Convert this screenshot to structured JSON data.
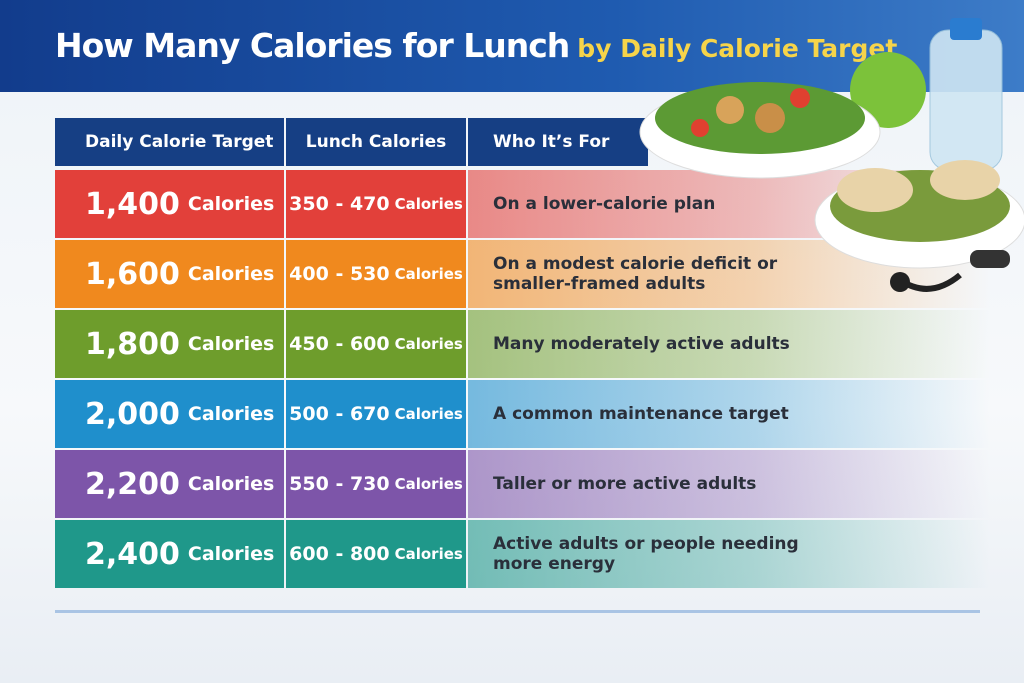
{
  "header": {
    "title": "How Many Calories for Lunch",
    "subtitle": "by Daily Calorie Target"
  },
  "table": {
    "columns": [
      "Daily Calorie Target",
      "Lunch Calories",
      "Who It’s For"
    ],
    "rows": [
      {
        "target": "1,400",
        "target_unit": "Calories",
        "lunch": "350 - 470",
        "lunch_unit": "Calories",
        "who": "On a lower-calorie plan",
        "color": "#e2403a"
      },
      {
        "target": "1,600",
        "target_unit": "Calories",
        "lunch": "400 - 530",
        "lunch_unit": "Calories",
        "who": "On a modest calorie deficit or smaller-framed adults",
        "color": "#f0891e"
      },
      {
        "target": "1,800",
        "target_unit": "Calories",
        "lunch": "450 - 600",
        "lunch_unit": "Calories",
        "who": "Many moderately active adults",
        "color": "#6e9d2c"
      },
      {
        "target": "2,000",
        "target_unit": "Calories",
        "lunch": "500 - 670",
        "lunch_unit": "Calories",
        "who": "A common maintenance target",
        "color": "#1f8fcc"
      },
      {
        "target": "2,200",
        "target_unit": "Calories",
        "lunch": "550 - 730",
        "lunch_unit": "Calories",
        "who": "Taller or more active adults",
        "color": "#7d55a9"
      },
      {
        "target": "2,400",
        "target_unit": "Calories",
        "lunch": "600 - 800",
        "lunch_unit": "Calories",
        "who": "Active adults or people needing more energy",
        "color": "#1f988a"
      }
    ]
  }
}
